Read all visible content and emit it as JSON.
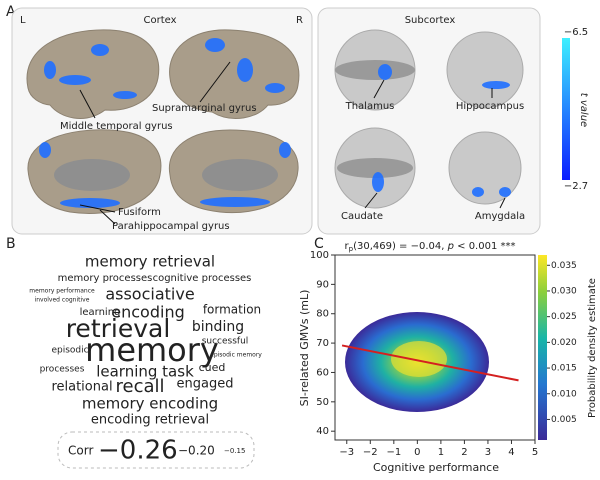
{
  "panel_a": {
    "label": "A",
    "cortex": {
      "title": "Cortex",
      "left": "L",
      "right": "R",
      "regions": [
        "Supramarginal gyrus",
        "Middle temporal gyrus",
        "Fusiform",
        "Parahippocampal gyrus"
      ]
    },
    "subcortex": {
      "title": "Subcortex",
      "regions": [
        "Thalamus",
        "Hippocampus",
        "Caudate",
        "Amygdala"
      ]
    },
    "colorbar": {
      "title": "t value",
      "ticks": [
        {
          "value": -6.5,
          "label": "−6.5"
        },
        {
          "value": -2.7,
          "label": "−2.7"
        }
      ]
    }
  },
  "panel_b": {
    "label": "B",
    "words": [
      "memory retrieval",
      "memory processes",
      "cognitive processes",
      "associative",
      "memory performance",
      "involved cognitive",
      "encoding",
      "formation",
      "learning",
      "retrieval",
      "binding",
      "successful",
      "memory",
      "episodic",
      "learning task",
      "cued",
      "episodic memory",
      "processes",
      "relational",
      "recall",
      "engaged",
      "memory encoding",
      "encoding retrieval"
    ],
    "corr_label": "Corr",
    "corr_values": [
      {
        "value": -0.26,
        "label": "−0.26"
      },
      {
        "value": -0.2,
        "label": "−0.20"
      },
      {
        "value": -0.15,
        "label": "−0.15"
      }
    ]
  },
  "chart_data": {
    "type": "scatter",
    "label": "C",
    "annotation": [
      "r",
      "p",
      "(30,469) = −0.04, ",
      "p",
      " < 0.001 ***"
    ],
    "x_label": "Cognitive performance",
    "y_label": "SI-related GMVs (mL)",
    "xlim": [
      -3.5,
      5
    ],
    "ylim": [
      37,
      100
    ],
    "xticks": [
      {
        "value": -3,
        "label": "−3"
      },
      {
        "value": -2,
        "label": "−2"
      },
      {
        "value": -1,
        "label": "−1"
      },
      0,
      1,
      2,
      3,
      4,
      5
    ],
    "yticks": [
      40,
      50,
      60,
      70,
      80,
      90,
      100
    ],
    "fit_line": {
      "x": [
        -3.2,
        4.3
      ],
      "y": [
        69.2,
        57.3
      ],
      "color": "#d42020"
    },
    "colorbar": {
      "title": "Probability density estimate",
      "zlim": [
        0.001,
        0.037
      ],
      "ticks": [
        0.005,
        0.01,
        0.015,
        0.02,
        0.025,
        0.03,
        0.035
      ]
    }
  }
}
